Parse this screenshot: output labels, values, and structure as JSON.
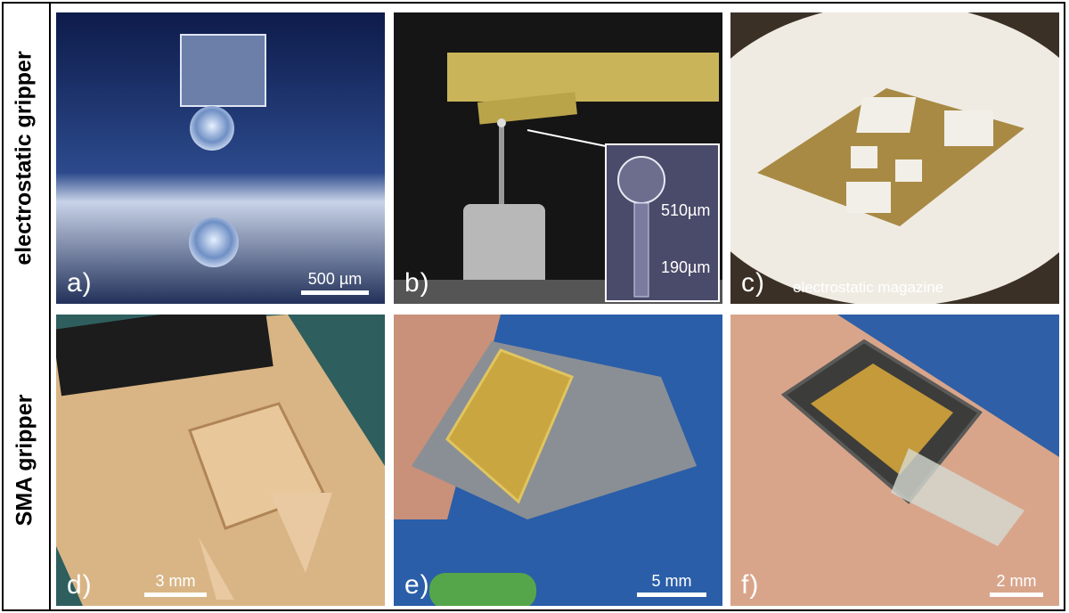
{
  "row_labels": {
    "top": "electrostatic gripper",
    "bottom": "SMA gripper"
  },
  "panels": {
    "a": {
      "label": "a)",
      "scale": "500 µm"
    },
    "b": {
      "label": "b)",
      "inset_upper": "510µm",
      "inset_lower": "190µm"
    },
    "c": {
      "label": "c)",
      "caption": "electrostatic magazine"
    },
    "d": {
      "label": "d)",
      "scale": "3 mm"
    },
    "e": {
      "label": "e)",
      "scale": "5 mm"
    },
    "f": {
      "label": "f)",
      "scale": "2 mm"
    }
  }
}
